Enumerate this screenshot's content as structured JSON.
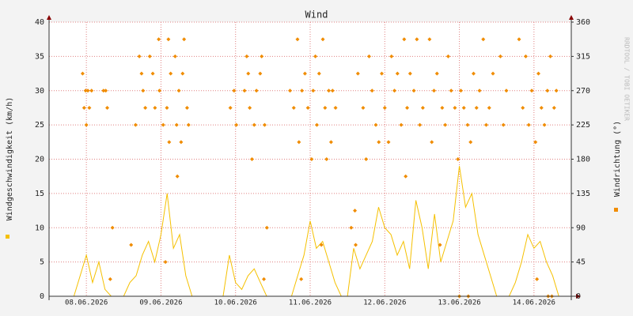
{
  "chart_data": {
    "type": "line",
    "title": "Wind",
    "ylabel": "Windgeschwindigkeit (km/h)",
    "y2label": "Windrichtung (°)",
    "watermark": "RRDTOOL / TOBI OETIKER",
    "xlim": [
      0.5,
      7.5
    ],
    "xticks": [
      {
        "value": 1,
        "label": "08.06.2026"
      },
      {
        "value": 2,
        "label": "09.06.2026"
      },
      {
        "value": 3,
        "label": "10.06.2026"
      },
      {
        "value": 4,
        "label": "11.06.2026"
      },
      {
        "value": 5,
        "label": "12.06.2026"
      },
      {
        "value": 6,
        "label": "13.06.2026"
      },
      {
        "value": 7,
        "label": "14.06.2026"
      }
    ],
    "ylim": [
      0,
      40
    ],
    "yticks": [
      0,
      5,
      10,
      15,
      20,
      25,
      30,
      35,
      40
    ],
    "y2lim": [
      0,
      360
    ],
    "y2ticks": [
      0,
      45,
      90,
      135,
      180,
      225,
      270,
      315,
      360
    ],
    "grid": true,
    "series": [
      {
        "type": "line",
        "color": "#f5c000",
        "x": [
          0.5,
          0.583,
          0.667,
          0.75,
          0.833,
          0.917,
          1,
          1.083,
          1.167,
          1.25,
          1.333,
          1.417,
          1.5,
          1.583,
          1.667,
          1.75,
          1.833,
          1.917,
          2,
          2.083,
          2.167,
          2.25,
          2.333,
          2.417,
          2.5,
          2.583,
          2.667,
          2.75,
          2.833,
          2.917,
          3,
          3.083,
          3.167,
          3.25,
          3.333,
          3.417,
          3.5,
          3.583,
          3.667,
          3.75,
          3.833,
          3.917,
          4,
          4.083,
          4.167,
          4.25,
          4.333,
          4.417,
          4.5,
          4.583,
          4.667,
          4.75,
          4.833,
          4.917,
          5,
          5.083,
          5.167,
          5.25,
          5.333,
          5.417,
          5.5,
          5.583,
          5.667,
          5.75,
          5.833,
          5.917,
          6,
          6.083,
          6.167,
          6.25,
          6.333,
          6.417,
          6.5,
          6.583,
          6.667,
          6.75,
          6.833,
          6.917,
          7,
          7.083,
          7.167,
          7.25,
          7.333,
          7.417,
          7.5
        ],
        "values": [
          0,
          0,
          0,
          0,
          0,
          3,
          6,
          2,
          5,
          1,
          0,
          0,
          0,
          2,
          3,
          6,
          8,
          5,
          9,
          15,
          7,
          9,
          3,
          0,
          0,
          0,
          0,
          0,
          0,
          6,
          2,
          1,
          3,
          4,
          2,
          0,
          0,
          0,
          0,
          0,
          3,
          6,
          11,
          7,
          8,
          5,
          2,
          0,
          0,
          7,
          4,
          6,
          8,
          13,
          10,
          9,
          6,
          8,
          4,
          14,
          10,
          4,
          12,
          5,
          8,
          11,
          19,
          13,
          15,
          9,
          6,
          3,
          0,
          0,
          0,
          2,
          5,
          9,
          7,
          8,
          5,
          3,
          0,
          0,
          0
        ]
      },
      {
        "type": "scatter",
        "axis": "y2",
        "color": "#f08c00",
        "x": [
          0.95,
          0.97,
          0.99,
          1.0,
          1.02,
          1.04,
          1.07,
          1.23,
          1.26,
          1.28,
          1.32,
          1.35,
          1.6,
          1.66,
          1.71,
          1.74,
          1.76,
          1.79,
          1.85,
          1.89,
          1.92,
          1.97,
          1.98,
          2.03,
          2.06,
          2.08,
          2.1,
          2.11,
          2.13,
          2.19,
          2.21,
          2.22,
          2.24,
          2.27,
          2.29,
          2.31,
          2.35,
          2.37,
          2.93,
          2.98,
          3.01,
          3.12,
          3.15,
          3.17,
          3.19,
          3.22,
          3.25,
          3.28,
          3.33,
          3.35,
          3.38,
          3.39,
          3.42,
          3.73,
          3.78,
          3.83,
          3.85,
          3.88,
          3.89,
          3.93,
          3.97,
          4.02,
          4.04,
          4.07,
          4.09,
          4.12,
          4.15,
          4.17,
          4.2,
          4.22,
          4.25,
          4.28,
          4.3,
          4.34,
          4.55,
          4.6,
          4.61,
          4.64,
          4.71,
          4.75,
          4.79,
          4.83,
          4.88,
          4.92,
          4.96,
          5,
          5.05,
          5.09,
          5.13,
          5.17,
          5.22,
          5.26,
          5.28,
          5.3,
          5.34,
          5.39,
          5.43,
          5.47,
          5.51,
          5.6,
          5.63,
          5.66,
          5.7,
          5.74,
          5.77,
          5.81,
          5.85,
          5.89,
          5.94,
          5.98,
          6,
          6.02,
          6.06,
          6.11,
          6.12,
          6.15,
          6.19,
          6.23,
          6.27,
          6.32,
          6.36,
          6.4,
          6.45,
          6.55,
          6.59,
          6.63,
          6.8,
          6.85,
          6.89,
          6.93,
          6.97,
          7.02,
          7.04,
          7.06,
          7.1,
          7.14,
          7.18,
          7.19,
          7.22,
          7.24,
          7.27,
          7.3
        ],
        "values": [
          292.5,
          247.5,
          270,
          225,
          270,
          247.5,
          270,
          270,
          270,
          247.5,
          22.5,
          90,
          67.5,
          225,
          315,
          292.5,
          270,
          247.5,
          315,
          292.5,
          247.5,
          337.5,
          270,
          225,
          45,
          247.5,
          337.5,
          202.5,
          292.5,
          315,
          225,
          157.5,
          270,
          202.5,
          292.5,
          337.5,
          247.5,
          225,
          247.5,
          270,
          225,
          270,
          315,
          292.5,
          247.5,
          180,
          225,
          270,
          292.5,
          315,
          22.5,
          225,
          90,
          270,
          247.5,
          337.5,
          202.5,
          22.5,
          270,
          292.5,
          247.5,
          180,
          270,
          315,
          225,
          292.5,
          67.5,
          337.5,
          247.5,
          180,
          270,
          202.5,
          270,
          247.5,
          90,
          112.5,
          67.5,
          292.5,
          247.5,
          180,
          315,
          270,
          225,
          202.5,
          292.5,
          247.5,
          202.5,
          315,
          270,
          292.5,
          225,
          337.5,
          157.5,
          247.5,
          292.5,
          270,
          337.5,
          225,
          247.5,
          337.5,
          202.5,
          270,
          292.5,
          67.5,
          247.5,
          225,
          315,
          270,
          247.5,
          180,
          0,
          270,
          247.5,
          225,
          0,
          202.5,
          292.5,
          247.5,
          270,
          337.5,
          225,
          247.5,
          292.5,
          315,
          225,
          270,
          337.5,
          247.5,
          315,
          225,
          270,
          202.5,
          22.5,
          292.5,
          247.5,
          225,
          270,
          0,
          315,
          0,
          247.5,
          270
        ]
      }
    ]
  }
}
